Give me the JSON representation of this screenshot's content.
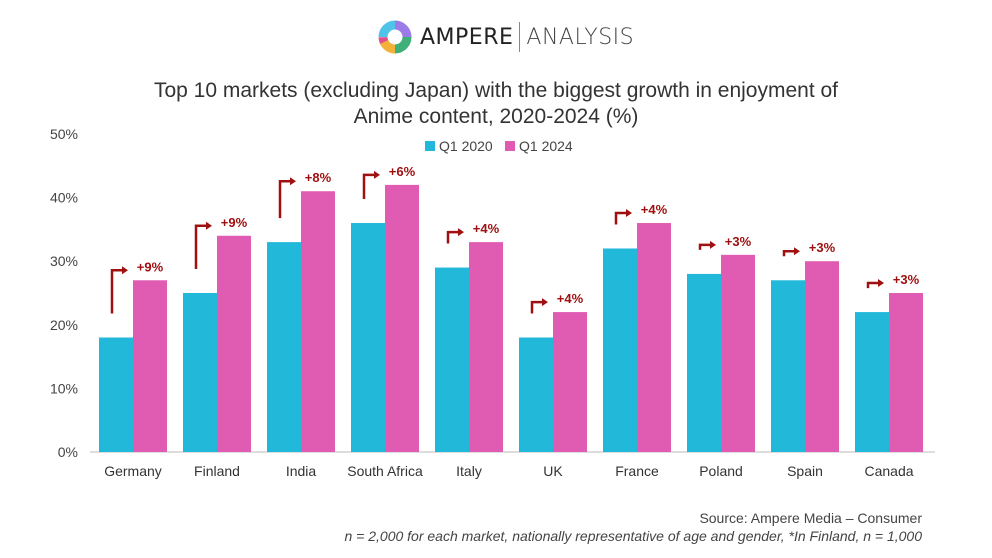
{
  "logo": {
    "brand": "AMPERE",
    "sub": "ANALYSIS"
  },
  "chart_data": {
    "type": "bar",
    "title": "Top 10 markets (excluding Japan) with the biggest growth in enjoyment of Anime content, 2020-2024 (%)",
    "title_lines": [
      "Top 10 markets (excluding Japan) with the biggest growth in enjoyment of",
      "Anime content, 2020-2024 (%)"
    ],
    "categories": [
      "Germany",
      "Finland",
      "India",
      "South Africa",
      "Italy",
      "UK",
      "France",
      "Poland",
      "Spain",
      "Canada"
    ],
    "series": [
      {
        "name": "Q1 2020",
        "color": "#22b8da",
        "values": [
          18,
          25,
          33,
          36,
          29,
          18,
          32,
          28,
          27,
          22
        ]
      },
      {
        "name": "Q1 2024",
        "color": "#e05bb2",
        "values": [
          27,
          34,
          41,
          42,
          33,
          22,
          36,
          31,
          30,
          25
        ]
      }
    ],
    "annotations": [
      "+9%",
      "+9%",
      "+8%",
      "+6%",
      "+4%",
      "+4%",
      "+4%",
      "+3%",
      "+3%",
      "+3%"
    ],
    "annotation_color": "#a01010",
    "ylim": [
      0,
      50
    ],
    "yticks": [
      "0%",
      "10%",
      "20%",
      "30%",
      "40%",
      "50%"
    ],
    "grid": false,
    "legend": "top-center"
  },
  "source": {
    "line1": "Source: Ampere Media – Consumer",
    "line2": "n = 2,000 for each market, nationally representative of age and gender, *In Finland, n = 1,000"
  }
}
